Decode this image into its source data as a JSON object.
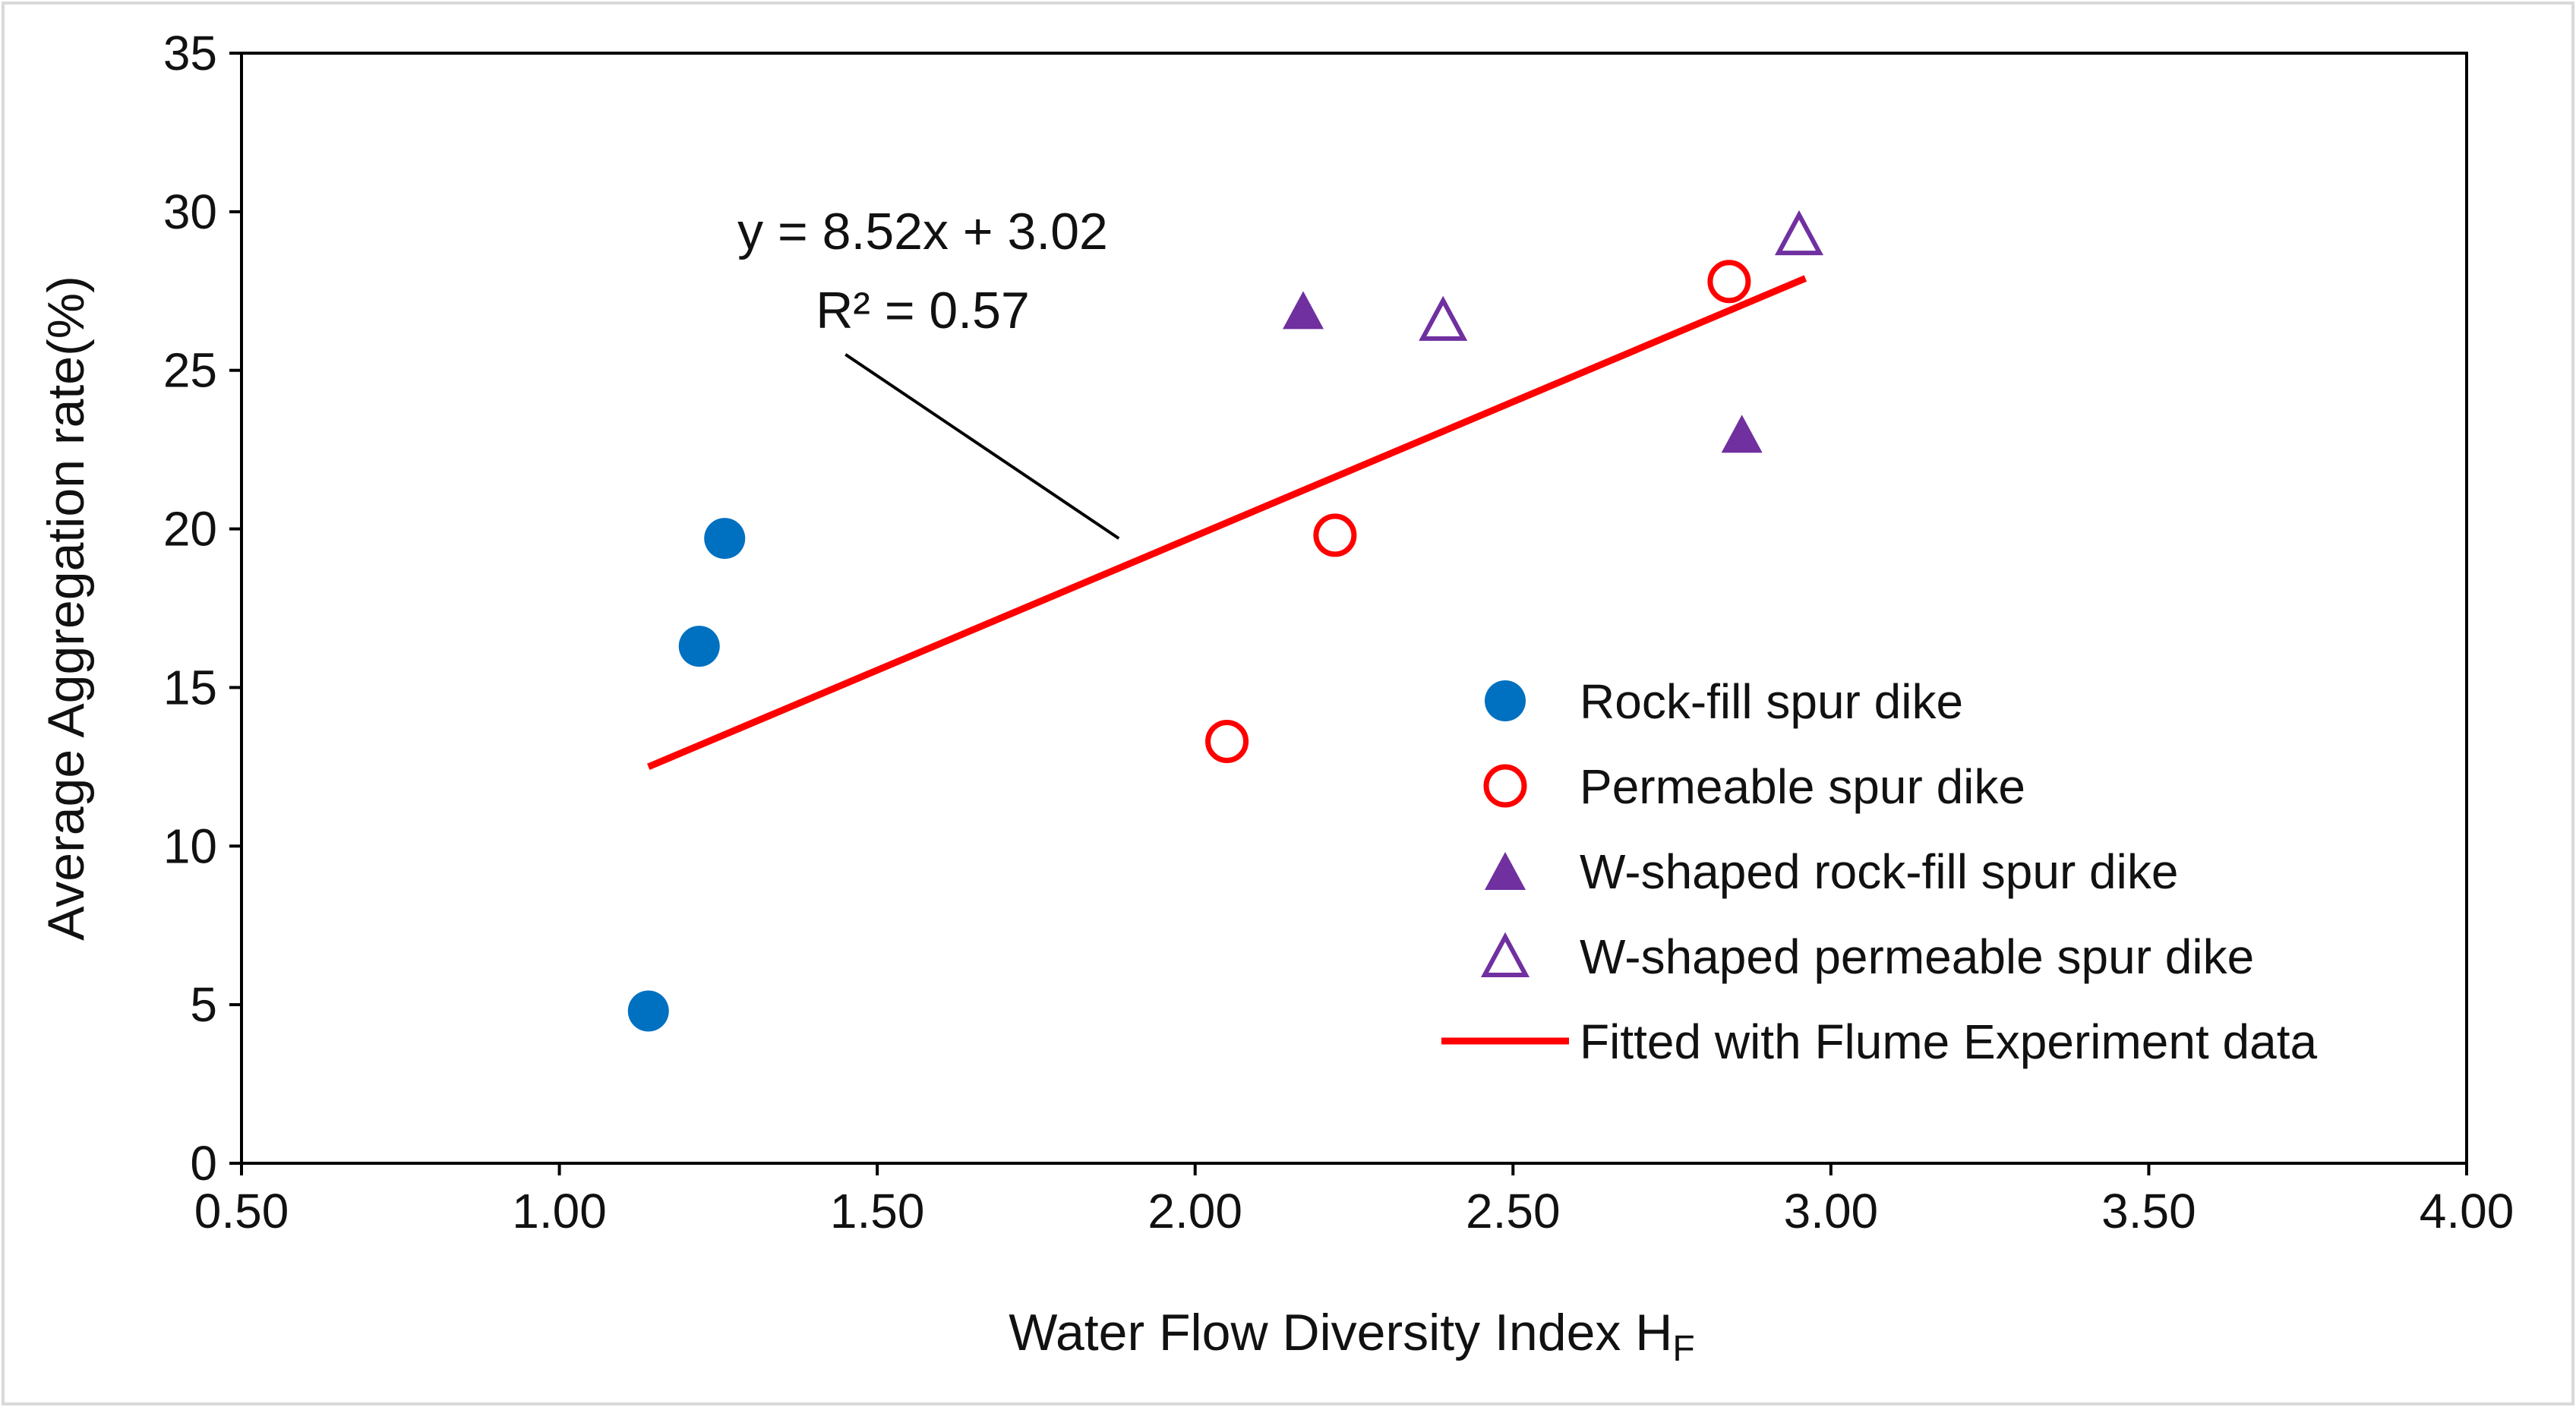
{
  "chart_data": {
    "type": "scatter",
    "title": "",
    "xlabel": "Water Flow Diversity Index H",
    "xlabel_subscript": "F",
    "ylabel": "Average Aggregation rate(%)",
    "xlim": [
      0.5,
      4.0
    ],
    "ylim": [
      0,
      35
    ],
    "xticks": [
      "0.50",
      "1.00",
      "1.50",
      "2.00",
      "2.50",
      "3.00",
      "3.50",
      "4.00"
    ],
    "yticks": [
      "0",
      "5",
      "10",
      "15",
      "20",
      "25",
      "30",
      "35"
    ],
    "grid": false,
    "legend_position": "right",
    "series": [
      {
        "name": "Rock-fill spur dike",
        "marker": "filled-circle",
        "color": "#0070C0",
        "points": [
          [
            1.14,
            4.8
          ],
          [
            1.22,
            16.3
          ],
          [
            1.26,
            19.7
          ]
        ]
      },
      {
        "name": "Permeable spur dike",
        "marker": "open-circle",
        "color": "#FF0000",
        "points": [
          [
            2.05,
            13.3
          ],
          [
            2.22,
            19.8
          ],
          [
            2.84,
            27.8
          ]
        ]
      },
      {
        "name": "W-shaped rock-fill spur dike",
        "marker": "filled-triangle",
        "color": "#7030A0",
        "points": [
          [
            2.17,
            26.9
          ],
          [
            2.86,
            23.0
          ]
        ]
      },
      {
        "name": "W-shaped permeable spur dike",
        "marker": "open-triangle",
        "color": "#7030A0",
        "points": [
          [
            2.39,
            26.6
          ],
          [
            2.95,
            29.3
          ]
        ]
      }
    ],
    "fit_line": {
      "name": "Fitted with Flume Experiment data",
      "color": "#FF0000",
      "x": [
        1.14,
        2.96
      ],
      "y": [
        12.5,
        27.9
      ]
    },
    "annotation": {
      "equation": "y = 8.52x + 3.02",
      "r2_label": "R² = 0.57",
      "pointer_from": [
        1.45,
        25.5
      ],
      "pointer_to": [
        1.88,
        19.7
      ]
    }
  }
}
